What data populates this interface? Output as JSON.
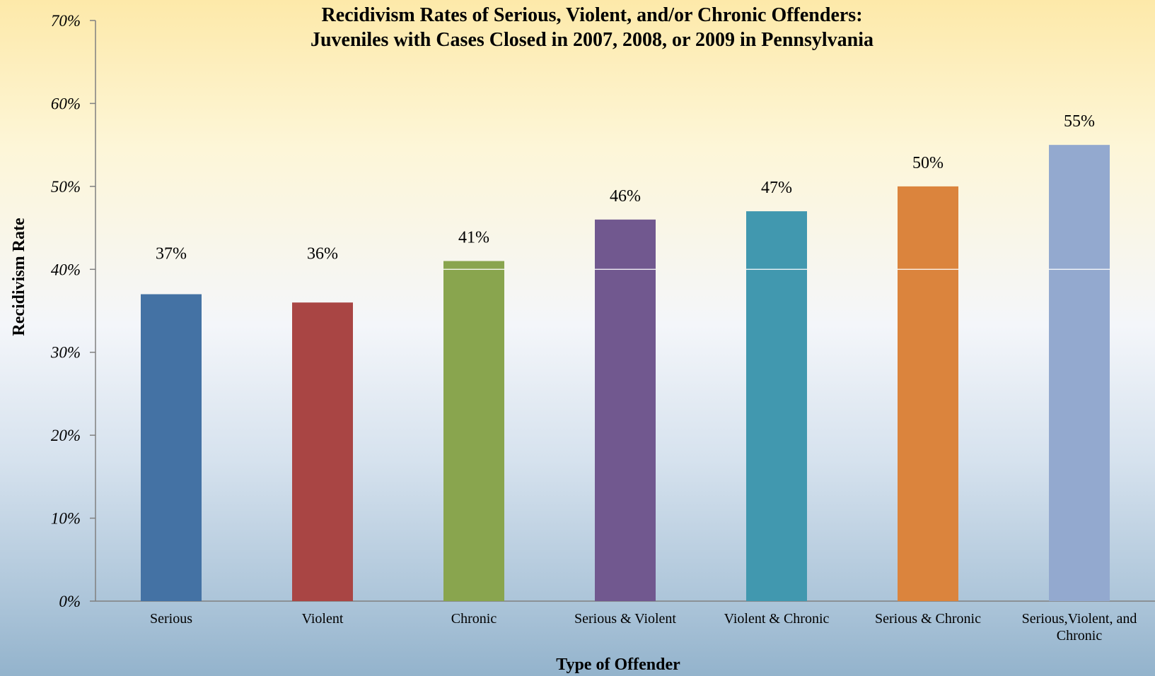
{
  "chart_data": {
    "type": "bar",
    "title_lines": [
      "Recidivism Rates of Serious, Violent, and/or Chronic Offenders:",
      "Juveniles with Cases Closed in 2007, 2008, or 2009 in Pennsylvania"
    ],
    "xlabel": "Type of Offender",
    "ylabel": "Recidivism Rate",
    "ylim": [
      0,
      70
    ],
    "yticks": [
      "0%",
      "10%",
      "20%",
      "30%",
      "40%",
      "50%",
      "60%",
      "70%"
    ],
    "categories": [
      [
        "Serious"
      ],
      [
        "Violent"
      ],
      [
        "Chronic"
      ],
      [
        "Serious & Violent"
      ],
      [
        "Violent & Chronic"
      ],
      [
        "Serious & Chronic"
      ],
      [
        "Serious,Violent, and",
        "Chronic"
      ]
    ],
    "values": [
      37,
      36,
      41,
      46,
      47,
      50,
      55
    ],
    "data_labels": [
      "37%",
      "36%",
      "41%",
      "46%",
      "47%",
      "50%",
      "55%"
    ],
    "colors": [
      "#4472a4",
      "#a94544",
      "#89a54e",
      "#71588f",
      "#4198af",
      "#db843d",
      "#93a9cf"
    ],
    "grid": false,
    "legend": "none"
  }
}
